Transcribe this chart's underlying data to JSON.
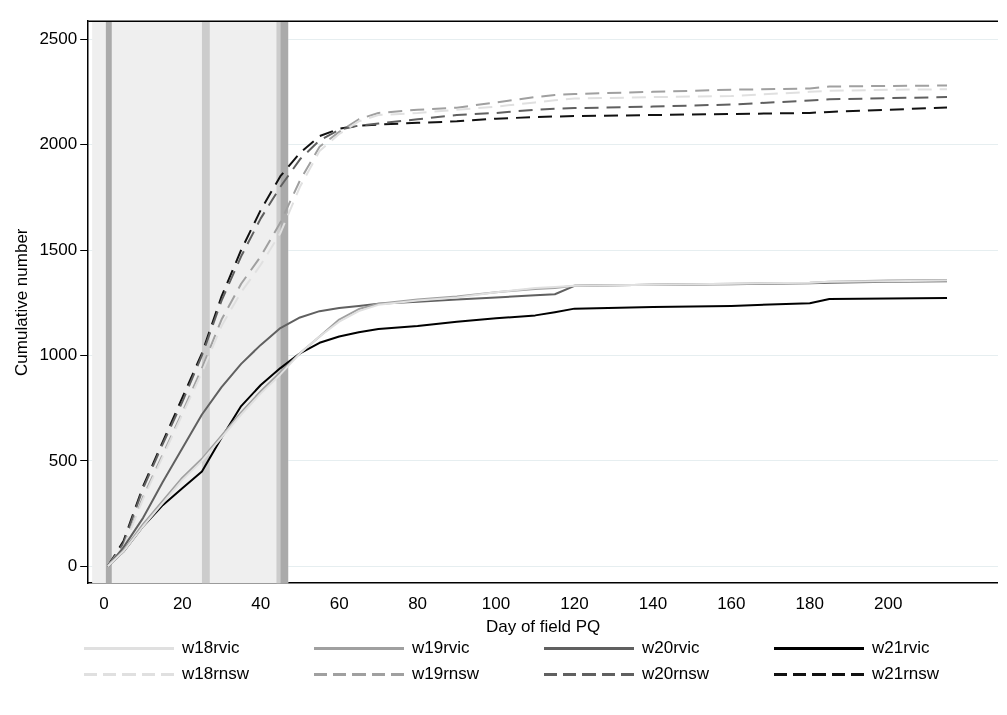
{
  "chart_data": {
    "type": "line",
    "xlabel": "Day of field PQ",
    "ylabel": "Cumulative number",
    "x": [
      1,
      5,
      10,
      15,
      20,
      25,
      30,
      35,
      40,
      45,
      50,
      55,
      60,
      65,
      70,
      80,
      90,
      100,
      110,
      115,
      120,
      140,
      160,
      180,
      185,
      200,
      215
    ],
    "series": [
      {
        "name": "w18rvic",
        "color": "#e0e0e0",
        "line_style": "solid",
        "values": [
          0,
          70,
          190,
          300,
          410,
          500,
          610,
          720,
          820,
          910,
          1010,
          1090,
          1160,
          1210,
          1240,
          1260,
          1275,
          1300,
          1320,
          1325,
          1330,
          1335,
          1340,
          1345,
          1350,
          1352,
          1355
        ]
      },
      {
        "name": "w19rvic",
        "color": "#a0a0a0",
        "line_style": "solid",
        "values": [
          0,
          75,
          200,
          310,
          420,
          510,
          620,
          730,
          830,
          920,
          1010,
          1090,
          1170,
          1220,
          1245,
          1265,
          1280,
          1300,
          1315,
          1320,
          1330,
          1335,
          1340,
          1345,
          1350,
          1355,
          1358
        ]
      },
      {
        "name": "w20rvic",
        "color": "#606060",
        "line_style": "solid",
        "values": [
          0,
          90,
          230,
          400,
          560,
          720,
          850,
          960,
          1050,
          1130,
          1180,
          1210,
          1225,
          1235,
          1245,
          1255,
          1265,
          1275,
          1285,
          1290,
          1330,
          1335,
          1338,
          1342,
          1345,
          1350,
          1352
        ]
      },
      {
        "name": "w21rvic",
        "color": "#000000",
        "line_style": "solid",
        "values": [
          0,
          70,
          190,
          290,
          370,
          450,
          610,
          760,
          860,
          940,
          1010,
          1060,
          1090,
          1110,
          1125,
          1140,
          1160,
          1176,
          1190,
          1205,
          1222,
          1230,
          1235,
          1248,
          1268,
          1270,
          1272
        ]
      },
      {
        "name": "w18rnsw",
        "color": "#e0e0e0",
        "line_style": "dashed",
        "values": [
          0,
          90,
          320,
          520,
          720,
          920,
          1140,
          1300,
          1430,
          1580,
          1800,
          1970,
          2050,
          2110,
          2140,
          2150,
          2165,
          2180,
          2200,
          2210,
          2218,
          2225,
          2230,
          2250,
          2255,
          2260,
          2262
        ]
      },
      {
        "name": "w19rnsw",
        "color": "#a0a0a0",
        "line_style": "dashed",
        "values": [
          0,
          95,
          330,
          530,
          730,
          940,
          1170,
          1340,
          1470,
          1630,
          1830,
          1990,
          2060,
          2120,
          2150,
          2165,
          2175,
          2200,
          2225,
          2235,
          2240,
          2250,
          2260,
          2266,
          2275,
          2278,
          2280
        ]
      },
      {
        "name": "w20rnsw",
        "color": "#606060",
        "line_style": "dashed",
        "values": [
          0,
          110,
          370,
          580,
          780,
          1000,
          1260,
          1470,
          1650,
          1800,
          1930,
          2020,
          2070,
          2090,
          2100,
          2120,
          2140,
          2150,
          2165,
          2170,
          2173,
          2180,
          2190,
          2209,
          2215,
          2220,
          2225
        ]
      },
      {
        "name": "w21rnsw",
        "color": "#111111",
        "line_style": "dashed",
        "values": [
          0,
          120,
          380,
          590,
          800,
          1010,
          1280,
          1500,
          1690,
          1850,
          1960,
          2040,
          2075,
          2090,
          2095,
          2103,
          2110,
          2123,
          2130,
          2133,
          2135,
          2140,
          2145,
          2150,
          2155,
          2165,
          2176
        ]
      }
    ],
    "xlim": [
      -4,
      228
    ],
    "xticks": [
      0,
      20,
      40,
      60,
      80,
      100,
      120,
      140,
      160,
      180,
      200
    ],
    "ylim": [
      -80,
      2585
    ],
    "yticks": [
      0,
      500,
      1000,
      1500,
      2000,
      2500
    ],
    "bands": [
      {
        "axis": "x",
        "from": -3,
        "to": 47,
        "color": "#efefef"
      },
      {
        "axis": "x",
        "from": 0.5,
        "to": 2,
        "color": "#aaaaaa"
      },
      {
        "axis": "x",
        "from": 25,
        "to": 27,
        "color": "#cccccc"
      },
      {
        "axis": "x",
        "from": 44,
        "to": 45,
        "color": "#cccccc"
      },
      {
        "axis": "x",
        "from": 45,
        "to": 47,
        "color": "#aaaaaa"
      }
    ],
    "grid": "y",
    "legend": "bottom",
    "marker": "none"
  }
}
